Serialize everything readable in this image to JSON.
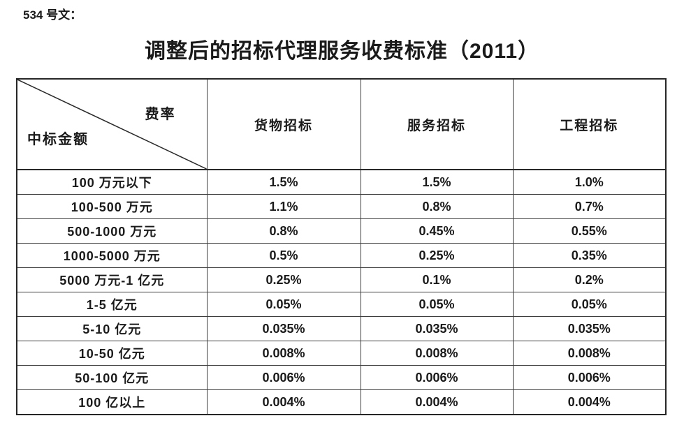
{
  "page": {
    "doc_label": "534 号文：",
    "title": "调整后的招标代理服务收费标准（2011）"
  },
  "table": {
    "corner": {
      "top_right": "费率",
      "bottom_left": "中标金额"
    },
    "columns": [
      "货物招标",
      "服务招标",
      "工程招标"
    ],
    "rows": [
      {
        "label": "100 万元以下",
        "values": [
          "1.5%",
          "1.5%",
          "1.0%"
        ]
      },
      {
        "label": "100-500 万元",
        "values": [
          "1.1%",
          "0.8%",
          "0.7%"
        ]
      },
      {
        "label": "500-1000 万元",
        "values": [
          "0.8%",
          "0.45%",
          "0.55%"
        ]
      },
      {
        "label": "1000-5000 万元",
        "values": [
          "0.5%",
          "0.25%",
          "0.35%"
        ]
      },
      {
        "label": "5000 万元-1 亿元",
        "values": [
          "0.25%",
          "0.1%",
          "0.2%"
        ]
      },
      {
        "label": "1-5 亿元",
        "values": [
          "0.05%",
          "0.05%",
          "0.05%"
        ]
      },
      {
        "label": "5-10 亿元",
        "values": [
          "0.035%",
          "0.035%",
          "0.035%"
        ]
      },
      {
        "label": "10-50 亿元",
        "values": [
          "0.008%",
          "0.008%",
          "0.008%"
        ]
      },
      {
        "label": "50-100 亿元",
        "values": [
          "0.006%",
          "0.006%",
          "0.006%"
        ]
      },
      {
        "label": "100 亿以上",
        "values": [
          "0.004%",
          "0.004%",
          "0.004%"
        ]
      }
    ]
  },
  "colors": {
    "text": "#1a1a1a",
    "border": "#3d3d3d",
    "background": "#ffffff"
  }
}
